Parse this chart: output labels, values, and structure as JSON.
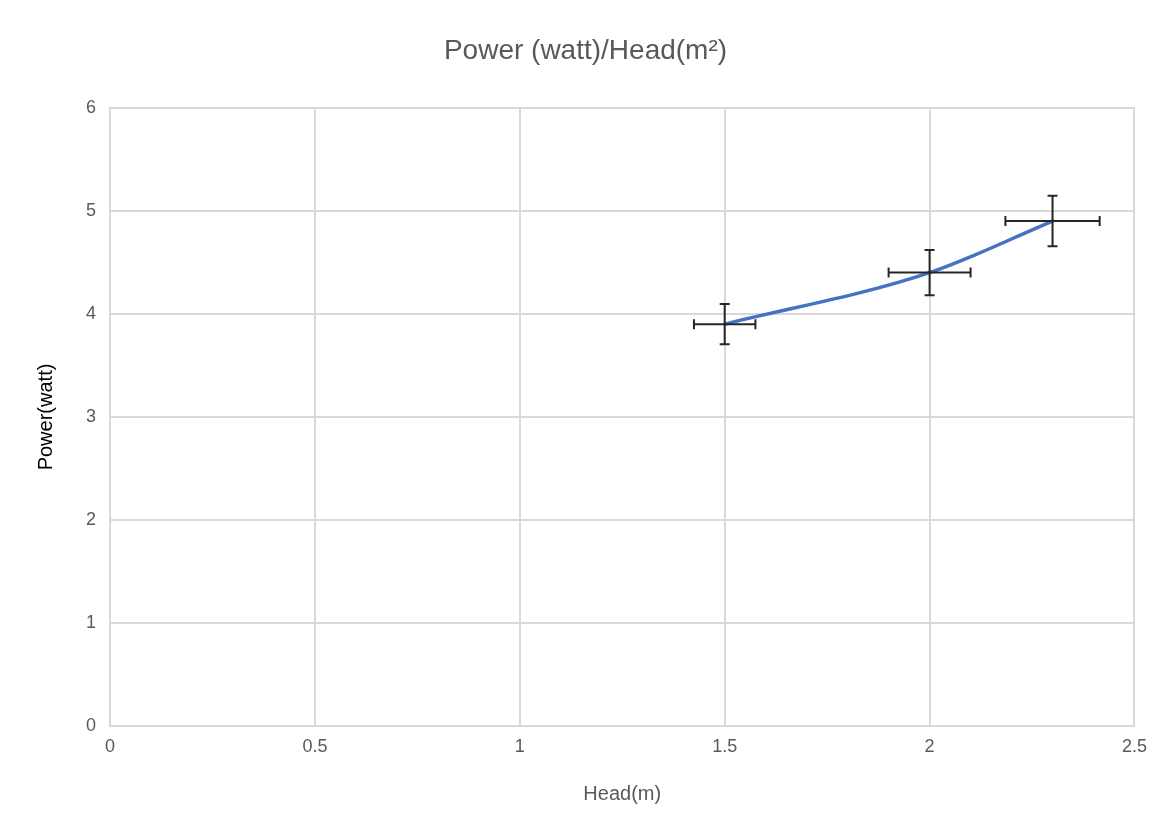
{
  "chart_data": {
    "type": "line",
    "title": "Power (watt)/Head(m²)",
    "xlabel": "Head(m)",
    "ylabel": "Power(watt)",
    "x": [
      1.5,
      2,
      2.3
    ],
    "series": [
      {
        "color": "#4472c4",
        "values": [
          3.9,
          4.4,
          4.9
        ],
        "errors": [
          0.195,
          0.22,
          0.245
        ],
        "xerrors": [
          0.075,
          0.1,
          0.115
        ]
      }
    ],
    "xlim": [
      0,
      2.5
    ],
    "xticks": [
      0,
      0.5,
      1,
      1.5,
      2,
      2.5
    ],
    "ylim": [
      0,
      6
    ],
    "yticks": [
      0,
      1,
      2,
      3,
      4,
      5,
      6
    ],
    "grid": true,
    "marker": "none",
    "line_style": "solid",
    "legend": false
  }
}
